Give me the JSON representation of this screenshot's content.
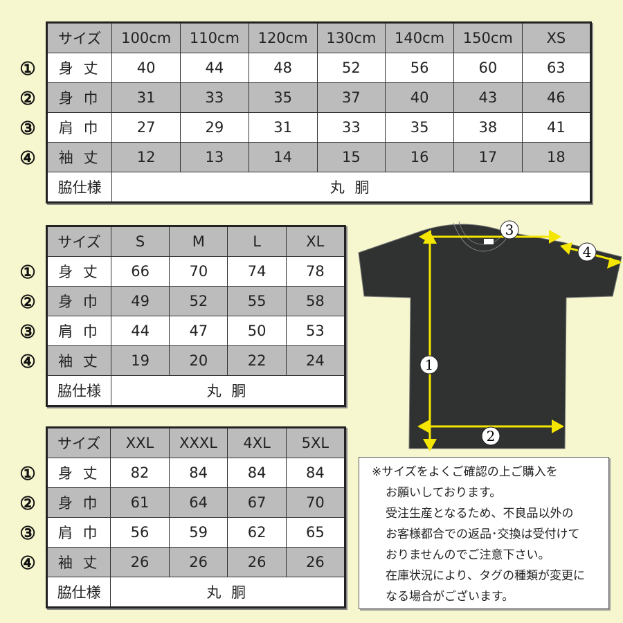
{
  "colors": {
    "background": "#f6f6cf",
    "header_gray": "#bcbcbc",
    "shirt": "#2f3230",
    "arrow": "#f5e600"
  },
  "row_markers": [
    "①",
    "②",
    "③",
    "④"
  ],
  "tables": [
    {
      "header": [
        "サイズ",
        "100cm",
        "110cm",
        "120cm",
        "130cm",
        "140cm",
        "150cm",
        "XS"
      ],
      "rows": [
        {
          "label": "身 丈",
          "values": [
            "40",
            "44",
            "48",
            "52",
            "56",
            "60",
            "63"
          ]
        },
        {
          "label": "身 巾",
          "values": [
            "31",
            "33",
            "35",
            "37",
            "40",
            "43",
            "46"
          ]
        },
        {
          "label": "肩 巾",
          "values": [
            "27",
            "29",
            "31",
            "33",
            "35",
            "38",
            "41"
          ]
        },
        {
          "label": "袖 丈",
          "values": [
            "12",
            "13",
            "14",
            "15",
            "16",
            "17",
            "18"
          ]
        }
      ],
      "side_label": "脇仕様",
      "side_value": "丸 胴"
    },
    {
      "header": [
        "サイズ",
        "S",
        "M",
        "L",
        "XL"
      ],
      "rows": [
        {
          "label": "身 丈",
          "values": [
            "66",
            "70",
            "74",
            "78"
          ]
        },
        {
          "label": "身 巾",
          "values": [
            "49",
            "52",
            "55",
            "58"
          ]
        },
        {
          "label": "肩 巾",
          "values": [
            "44",
            "47",
            "50",
            "53"
          ]
        },
        {
          "label": "袖 丈",
          "values": [
            "19",
            "20",
            "22",
            "24"
          ]
        }
      ],
      "side_label": "脇仕様",
      "side_value": "丸 胴"
    },
    {
      "header": [
        "サイズ",
        "XXL",
        "XXXL",
        "4XL",
        "5XL"
      ],
      "rows": [
        {
          "label": "身 丈",
          "values": [
            "82",
            "84",
            "84",
            "84"
          ]
        },
        {
          "label": "身 巾",
          "values": [
            "61",
            "64",
            "67",
            "70"
          ]
        },
        {
          "label": "肩 巾",
          "values": [
            "56",
            "59",
            "62",
            "65"
          ]
        },
        {
          "label": "袖 丈",
          "values": [
            "26",
            "26",
            "26",
            "26"
          ]
        }
      ],
      "side_label": "脇仕様",
      "side_value": "丸 胴"
    }
  ],
  "diagram": {
    "markers": [
      "1",
      "2",
      "3",
      "4"
    ]
  },
  "notes": {
    "lines": [
      "※サイズをよくご確認の上ご購入を",
      "お願いしております。",
      "受注生産となるため、不良品以外の",
      "お客様都合での返品･交換は受付けて",
      "おりませんのでご注意下さい。",
      "在庫状況により、タグの種類が変更に",
      "なる場合がございます。"
    ]
  }
}
